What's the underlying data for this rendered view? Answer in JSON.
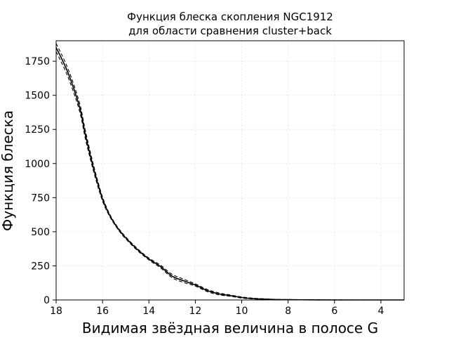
{
  "chart_data": {
    "type": "line",
    "title": "Функция блеска скопления NGC1912\nдля области сравнения cluster+back",
    "title_lines": [
      "Функция блеска скопления NGC1912",
      "для области сравнения cluster+back"
    ],
    "xlabel": "Видимая звёздная величина в полосе G",
    "ylabel": "Функция блеска",
    "xlim": [
      18,
      3
    ],
    "ylim": [
      0,
      1900
    ],
    "x_reversed": true,
    "grid": true,
    "legend": "none",
    "xticks": [
      18,
      16,
      14,
      12,
      10,
      8,
      6,
      4
    ],
    "xtick_labels": [
      "18",
      "16",
      "14",
      "12",
      "10",
      "8",
      "6",
      "4"
    ],
    "yticks": [
      0,
      250,
      500,
      750,
      1000,
      1250,
      1500,
      1750
    ],
    "ytick_labels": [
      "0",
      "250",
      "500",
      "750",
      "1000",
      "1250",
      "1500",
      "1750"
    ],
    "series": [
      {
        "role": "main",
        "style": "solid",
        "color": "#000000",
        "x": [
          18,
          17.5,
          17,
          16.75,
          16.5,
          16.25,
          16,
          15.75,
          15.5,
          15.25,
          15,
          14.5,
          14,
          13.5,
          13,
          12.5,
          12,
          11.5,
          11,
          10.5,
          10,
          9.5,
          9,
          8.5,
          8,
          7,
          6,
          5,
          4,
          3
        ],
        "y": [
          1850,
          1670,
          1420,
          1220,
          1040,
          880,
          740,
          640,
          565,
          505,
          455,
          370,
          300,
          245,
          175,
          140,
          110,
          70,
          45,
          32,
          18,
          10,
          6,
          3,
          2,
          1,
          0,
          0,
          0,
          0
        ]
      },
      {
        "role": "upper",
        "style": "dashed",
        "color": "#000000",
        "x": [
          18,
          17.5,
          17,
          16.75,
          16.5,
          16.25,
          16,
          15.75,
          15.5,
          15.25,
          15,
          14.5,
          14,
          13.5,
          13,
          12.5,
          12,
          11.5,
          11,
          10.5,
          10,
          9.5,
          9,
          8.5,
          8,
          7,
          6,
          5,
          4,
          3
        ],
        "y": [
          1880,
          1700,
          1450,
          1250,
          1065,
          900,
          755,
          650,
          572,
          512,
          462,
          377,
          307,
          255,
          188,
          152,
          118,
          78,
          52,
          37,
          22,
          13,
          8,
          4,
          3,
          1,
          1,
          0,
          0,
          0
        ]
      },
      {
        "role": "lower",
        "style": "dashed",
        "color": "#000000",
        "x": [
          18,
          17.5,
          17,
          16.75,
          16.5,
          16.25,
          16,
          15.75,
          15.5,
          15.25,
          15,
          14.5,
          14,
          13.5,
          13,
          12.5,
          12,
          11.5,
          11,
          10.5,
          10,
          9.5,
          9,
          8.5,
          8,
          7,
          6,
          5,
          4,
          3
        ],
        "y": [
          1820,
          1640,
          1390,
          1190,
          1015,
          860,
          725,
          630,
          558,
          498,
          448,
          363,
          293,
          235,
          163,
          128,
          102,
          62,
          38,
          27,
          14,
          7,
          4,
          2,
          1,
          0,
          0,
          0,
          0,
          0
        ]
      }
    ]
  }
}
